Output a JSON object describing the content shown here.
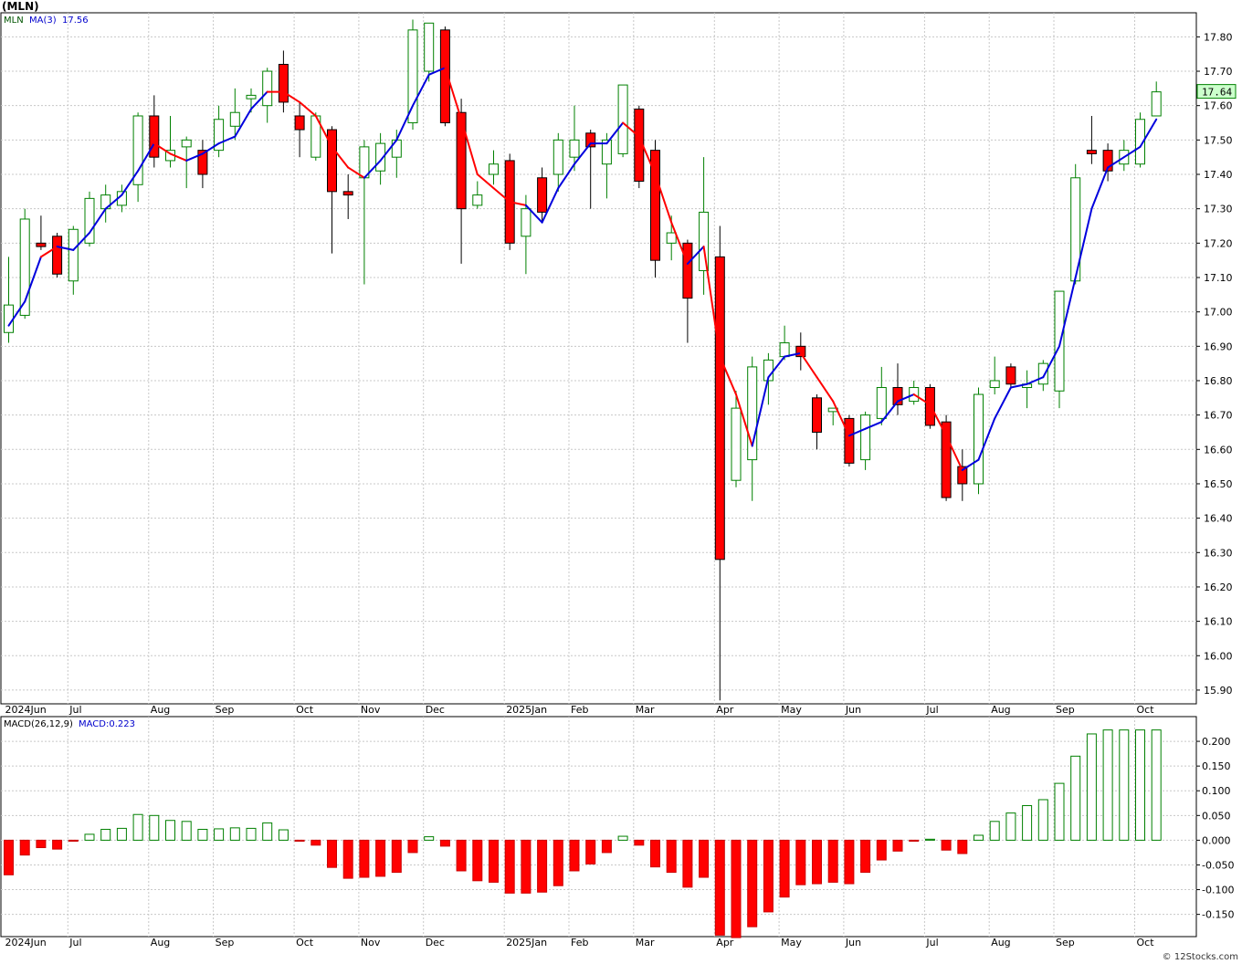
{
  "chart_data": [
    {
      "type": "candlestick",
      "title": "(MLN)",
      "legend": {
        "symbol": "MLN",
        "ma_label": "MA(3)",
        "ma_value": "17.56"
      },
      "last_price": "17.64",
      "ylim": [
        15.86,
        17.87
      ],
      "y_ticks": [
        "17.80",
        "17.70",
        "17.60",
        "17.50",
        "17.40",
        "17.30",
        "17.20",
        "17.10",
        "17.00",
        "16.90",
        "16.80",
        "16.70",
        "16.60",
        "16.50",
        "16.40",
        "16.30",
        "16.20",
        "16.10",
        "16.00",
        "15.90"
      ],
      "x_ticks": [
        "2024Jun",
        "Jul",
        "Aug",
        "Sep",
        "Oct",
        "Nov",
        "Dec",
        "2025Jan",
        "Feb",
        "Mar",
        "Apr",
        "May",
        "Jun",
        "Jul",
        "Aug",
        "Sep",
        "Oct"
      ],
      "x_tick_weeks": [
        0,
        4,
        9,
        13,
        18,
        22,
        26,
        31,
        35,
        39,
        44,
        48,
        52,
        57,
        61,
        65,
        70
      ],
      "candles": [
        {
          "o": 16.94,
          "h": 17.16,
          "l": 16.91,
          "c": 17.02
        },
        {
          "o": 16.99,
          "h": 17.3,
          "l": 16.98,
          "c": 17.27
        },
        {
          "o": 17.2,
          "h": 17.28,
          "l": 17.18,
          "c": 17.19
        },
        {
          "o": 17.22,
          "h": 17.23,
          "l": 17.1,
          "c": 17.11
        },
        {
          "o": 17.09,
          "h": 17.25,
          "l": 17.05,
          "c": 17.24
        },
        {
          "o": 17.2,
          "h": 17.35,
          "l": 17.19,
          "c": 17.33
        },
        {
          "o": 17.3,
          "h": 17.37,
          "l": 17.26,
          "c": 17.34
        },
        {
          "o": 17.31,
          "h": 17.37,
          "l": 17.29,
          "c": 17.35
        },
        {
          "o": 17.37,
          "h": 17.58,
          "l": 17.32,
          "c": 17.57
        },
        {
          "o": 17.57,
          "h": 17.63,
          "l": 17.42,
          "c": 17.45
        },
        {
          "o": 17.44,
          "h": 17.57,
          "l": 17.42,
          "c": 17.47
        },
        {
          "o": 17.48,
          "h": 17.51,
          "l": 17.36,
          "c": 17.5
        },
        {
          "o": 17.47,
          "h": 17.5,
          "l": 17.36,
          "c": 17.4
        },
        {
          "o": 17.47,
          "h": 17.6,
          "l": 17.45,
          "c": 17.56
        },
        {
          "o": 17.54,
          "h": 17.65,
          "l": 17.5,
          "c": 17.58
        },
        {
          "o": 17.62,
          "h": 17.65,
          "l": 17.58,
          "c": 17.63
        },
        {
          "o": 17.6,
          "h": 17.71,
          "l": 17.55,
          "c": 17.7
        },
        {
          "o": 17.72,
          "h": 17.76,
          "l": 17.58,
          "c": 17.61
        },
        {
          "o": 17.57,
          "h": 17.61,
          "l": 17.45,
          "c": 17.53
        },
        {
          "o": 17.45,
          "h": 17.58,
          "l": 17.44,
          "c": 17.57
        },
        {
          "o": 17.53,
          "h": 17.54,
          "l": 17.17,
          "c": 17.35
        },
        {
          "o": 17.35,
          "h": 17.4,
          "l": 17.27,
          "c": 17.34
        },
        {
          "o": 17.39,
          "h": 17.5,
          "l": 17.08,
          "c": 17.48
        },
        {
          "o": 17.41,
          "h": 17.52,
          "l": 17.37,
          "c": 17.49
        },
        {
          "o": 17.45,
          "h": 17.53,
          "l": 17.39,
          "c": 17.5
        },
        {
          "o": 17.55,
          "h": 17.85,
          "l": 17.53,
          "c": 17.82
        },
        {
          "o": 17.7,
          "h": 17.84,
          "l": 17.67,
          "c": 17.84
        },
        {
          "o": 17.82,
          "h": 17.83,
          "l": 17.54,
          "c": 17.55
        },
        {
          "o": 17.58,
          "h": 17.62,
          "l": 17.14,
          "c": 17.3
        },
        {
          "o": 17.31,
          "h": 17.38,
          "l": 17.3,
          "c": 17.34
        },
        {
          "o": 17.4,
          "h": 17.47,
          "l": 17.37,
          "c": 17.43
        },
        {
          "o": 17.44,
          "h": 17.46,
          "l": 17.18,
          "c": 17.2
        },
        {
          "o": 17.22,
          "h": 17.34,
          "l": 17.11,
          "c": 17.3
        },
        {
          "o": 17.39,
          "h": 17.42,
          "l": 17.26,
          "c": 17.29
        },
        {
          "o": 17.4,
          "h": 17.52,
          "l": 17.35,
          "c": 17.5
        },
        {
          "o": 17.45,
          "h": 17.6,
          "l": 17.41,
          "c": 17.5
        },
        {
          "o": 17.52,
          "h": 17.53,
          "l": 17.3,
          "c": 17.48
        },
        {
          "o": 17.43,
          "h": 17.52,
          "l": 17.33,
          "c": 17.5
        },
        {
          "o": 17.46,
          "h": 17.66,
          "l": 17.45,
          "c": 17.66
        },
        {
          "o": 17.59,
          "h": 17.6,
          "l": 17.36,
          "c": 17.38
        },
        {
          "o": 17.47,
          "h": 17.5,
          "l": 17.1,
          "c": 17.15
        },
        {
          "o": 17.2,
          "h": 17.28,
          "l": 17.15,
          "c": 17.23
        },
        {
          "o": 17.2,
          "h": 17.21,
          "l": 16.91,
          "c": 17.04
        },
        {
          "o": 17.12,
          "h": 17.45,
          "l": 17.05,
          "c": 17.29
        },
        {
          "o": 17.16,
          "h": 17.25,
          "l": 15.87,
          "c": 16.28
        },
        {
          "o": 16.51,
          "h": 16.77,
          "l": 16.49,
          "c": 16.72
        },
        {
          "o": 16.57,
          "h": 16.87,
          "l": 16.45,
          "c": 16.84
        },
        {
          "o": 16.8,
          "h": 16.88,
          "l": 16.73,
          "c": 16.86
        },
        {
          "o": 16.87,
          "h": 16.96,
          "l": 16.86,
          "c": 16.91
        },
        {
          "o": 16.9,
          "h": 16.94,
          "l": 16.83,
          "c": 16.87
        },
        {
          "o": 16.75,
          "h": 16.76,
          "l": 16.6,
          "c": 16.65
        },
        {
          "o": 16.71,
          "h": 16.72,
          "l": 16.67,
          "c": 16.72
        },
        {
          "o": 16.69,
          "h": 16.7,
          "l": 16.55,
          "c": 16.56
        },
        {
          "o": 16.57,
          "h": 16.71,
          "l": 16.54,
          "c": 16.7
        },
        {
          "o": 16.69,
          "h": 16.84,
          "l": 16.67,
          "c": 16.78
        },
        {
          "o": 16.78,
          "h": 16.85,
          "l": 16.7,
          "c": 16.73
        },
        {
          "o": 16.74,
          "h": 16.8,
          "l": 16.73,
          "c": 16.78
        },
        {
          "o": 16.78,
          "h": 16.79,
          "l": 16.66,
          "c": 16.67
        },
        {
          "o": 16.68,
          "h": 16.7,
          "l": 16.45,
          "c": 16.46
        },
        {
          "o": 16.55,
          "h": 16.6,
          "l": 16.45,
          "c": 16.5
        },
        {
          "o": 16.5,
          "h": 16.78,
          "l": 16.47,
          "c": 16.76
        },
        {
          "o": 16.78,
          "h": 16.87,
          "l": 16.76,
          "c": 16.8
        },
        {
          "o": 16.84,
          "h": 16.85,
          "l": 16.78,
          "c": 16.79
        },
        {
          "o": 16.78,
          "h": 16.83,
          "l": 16.72,
          "c": 16.79
        },
        {
          "o": 16.79,
          "h": 16.86,
          "l": 16.77,
          "c": 16.85
        },
        {
          "o": 16.77,
          "h": 17.06,
          "l": 16.72,
          "c": 17.06
        },
        {
          "o": 17.09,
          "h": 17.43,
          "l": 17.08,
          "c": 17.39
        },
        {
          "o": 17.47,
          "h": 17.57,
          "l": 17.43,
          "c": 17.46
        },
        {
          "o": 17.47,
          "h": 17.49,
          "l": 17.38,
          "c": 17.41
        },
        {
          "o": 17.43,
          "h": 17.5,
          "l": 17.41,
          "c": 17.47
        },
        {
          "o": 17.43,
          "h": 17.58,
          "l": 17.42,
          "c": 17.56
        },
        {
          "o": 17.57,
          "h": 17.67,
          "l": 17.57,
          "c": 17.64
        }
      ],
      "ma": [
        16.96,
        17.03,
        17.16,
        17.19,
        17.18,
        17.23,
        17.3,
        17.34,
        17.41,
        17.49,
        17.46,
        17.44,
        17.46,
        17.49,
        17.51,
        17.59,
        17.64,
        17.64,
        17.61,
        17.57,
        17.48,
        17.42,
        17.39,
        17.44,
        17.5,
        17.6,
        17.69,
        17.71,
        17.56,
        17.4,
        17.36,
        17.32,
        17.31,
        17.26,
        17.36,
        17.43,
        17.49,
        17.49,
        17.55,
        17.51,
        17.4,
        17.26,
        17.14,
        17.19,
        16.87,
        16.76,
        16.61,
        16.81,
        16.87,
        16.88,
        16.81,
        16.74,
        16.64,
        16.66,
        16.68,
        16.74,
        16.76,
        16.73,
        16.64,
        16.54,
        16.57,
        16.69,
        16.78,
        16.79,
        16.81,
        16.9,
        17.1,
        17.3,
        17.42,
        17.45,
        17.48,
        17.56
      ],
      "ma_trend": [
        "blue",
        "blue",
        "blue",
        "red",
        "blue",
        "blue",
        "blue",
        "blue",
        "blue",
        "blue",
        "red",
        "red",
        "blue",
        "blue",
        "blue",
        "blue",
        "blue",
        "red",
        "red",
        "red",
        "red",
        "red",
        "red",
        "blue",
        "blue",
        "blue",
        "blue",
        "blue",
        "red",
        "red",
        "red",
        "red",
        "red",
        "blue",
        "blue",
        "blue",
        "blue",
        "blue",
        "blue",
        "red",
        "red",
        "red",
        "red",
        "blue",
        "red",
        "red",
        "red",
        "blue",
        "blue",
        "blue",
        "red",
        "red",
        "red",
        "blue",
        "blue",
        "blue",
        "blue",
        "red",
        "red",
        "red",
        "blue",
        "blue",
        "blue",
        "blue",
        "blue",
        "blue",
        "blue",
        "blue",
        "blue",
        "blue",
        "blue",
        "blue"
      ]
    },
    {
      "type": "bar",
      "title": "MACD(26,12,9)",
      "value_label": "MACD:0.223",
      "ylim": [
        -0.195,
        0.25
      ],
      "y_ticks": [
        "0.200",
        "0.150",
        "0.100",
        "0.050",
        "0.000",
        "-0.050",
        "-0.100",
        "-0.150"
      ],
      "values": [
        -0.07,
        -0.03,
        -0.015,
        -0.018,
        -0.002,
        0.012,
        0.022,
        0.024,
        0.052,
        0.05,
        0.04,
        0.038,
        0.022,
        0.023,
        0.025,
        0.024,
        0.035,
        0.021,
        -0.002,
        -0.01,
        -0.055,
        -0.077,
        -0.075,
        -0.073,
        -0.065,
        -0.025,
        0.007,
        -0.012,
        -0.062,
        -0.082,
        -0.085,
        -0.107,
        -0.107,
        -0.105,
        -0.092,
        -0.062,
        -0.048,
        -0.025,
        0.008,
        -0.01,
        -0.054,
        -0.065,
        -0.095,
        -0.075,
        -0.192,
        -0.197,
        -0.175,
        -0.145,
        -0.115,
        -0.09,
        -0.088,
        -0.085,
        -0.088,
        -0.065,
        -0.04,
        -0.022,
        -0.002,
        0.002,
        -0.02,
        -0.027,
        0.01,
        0.038,
        0.055,
        0.07,
        0.082,
        0.115,
        0.17,
        0.215,
        0.223,
        0.223,
        0.223,
        0.223
      ]
    }
  ],
  "footer": {
    "watermark": "© 12Stocks.com"
  }
}
